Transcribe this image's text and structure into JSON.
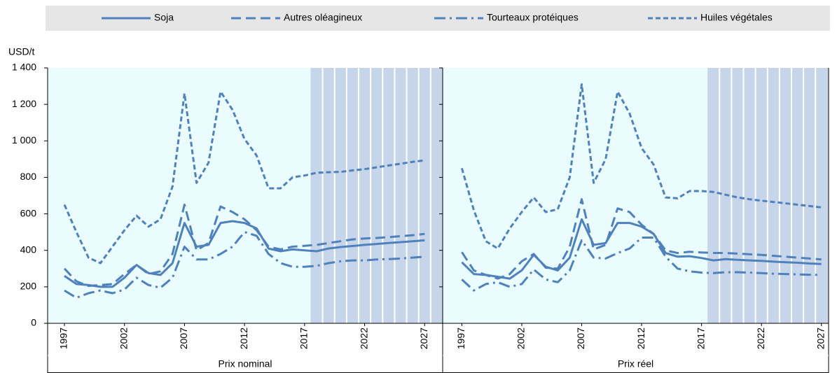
{
  "legend_corner": "top",
  "y_label": "USD/t",
  "chart_data": [
    {
      "type": "line",
      "title": "Prix nominal",
      "x": [
        1997,
        1998,
        1999,
        2000,
        2001,
        2002,
        2003,
        2004,
        2005,
        2006,
        2007,
        2008,
        2009,
        2010,
        2011,
        2012,
        2013,
        2014,
        2015,
        2016,
        2017,
        2018,
        2019,
        2020,
        2021,
        2022,
        2023,
        2024,
        2025,
        2026,
        2027
      ],
      "xlim": [
        1995.6,
        2028.5
      ],
      "xticks": [
        1997,
        2002,
        2007,
        2012,
        2017,
        2022,
        2027
      ],
      "ylim": [
        0,
        1400
      ],
      "yticks": [
        0,
        200,
        400,
        600,
        800,
        {
          "value": 1000,
          "label": "1 000"
        },
        {
          "value": 1200,
          "label": "1 200"
        },
        {
          "value": 1400,
          "label": "1 400"
        }
      ],
      "projection_start": 2018,
      "series": [
        {
          "name": "Soja",
          "color": "#4f81bd",
          "style": "solid",
          "values": [
            260,
            215,
            210,
            200,
            200,
            250,
            320,
            275,
            265,
            330,
            550,
            420,
            430,
            550,
            560,
            550,
            520,
            410,
            395,
            405,
            400,
            395,
            410,
            418,
            424,
            430,
            435,
            440,
            445,
            450,
            455
          ]
        },
        {
          "name": "Autres oléagineux",
          "color": "#4f81bd",
          "style": "dashed",
          "values": [
            300,
            230,
            205,
            210,
            215,
            270,
            320,
            270,
            285,
            380,
            650,
            400,
            440,
            640,
            610,
            570,
            510,
            420,
            405,
            420,
            425,
            430,
            440,
            450,
            460,
            465,
            468,
            472,
            478,
            483,
            490
          ]
        },
        {
          "name": "Tourteaux protéiques",
          "color": "#4f81bd",
          "style": "dashdot",
          "values": [
            180,
            140,
            165,
            180,
            165,
            185,
            250,
            210,
            195,
            250,
            420,
            350,
            350,
            380,
            420,
            500,
            480,
            380,
            330,
            310,
            310,
            315,
            330,
            340,
            345,
            345,
            350,
            352,
            355,
            360,
            365
          ]
        },
        {
          "name": "Huiles végétales",
          "color": "#4f81bd",
          "style": "shortdash",
          "values": [
            650,
            500,
            360,
            330,
            420,
            510,
            590,
            530,
            570,
            750,
            1260,
            770,
            880,
            1270,
            1170,
            1010,
            920,
            740,
            740,
            800,
            810,
            825,
            828,
            830,
            838,
            845,
            855,
            865,
            875,
            885,
            893
          ]
        }
      ]
    },
    {
      "type": "line",
      "title": "Prix réel",
      "x": [
        1997,
        1998,
        1999,
        2000,
        2001,
        2002,
        2003,
        2004,
        2005,
        2006,
        2007,
        2008,
        2009,
        2010,
        2011,
        2012,
        2013,
        2014,
        2015,
        2016,
        2017,
        2018,
        2019,
        2020,
        2021,
        2022,
        2023,
        2024,
        2025,
        2026,
        2027
      ],
      "xlim": [
        1995.4,
        2027.6
      ],
      "xticks": [
        1997,
        2002,
        2007,
        2012,
        2017,
        2022,
        2027
      ],
      "ylim": [
        0,
        1400
      ],
      "yticks": [
        0,
        200,
        400,
        600,
        800,
        {
          "value": 1000,
          "label": "1 000"
        },
        {
          "value": 1200,
          "label": "1 200"
        },
        {
          "value": 1400,
          "label": "1 400"
        }
      ],
      "projection_start": 2018,
      "series": [
        {
          "name": "Soja",
          "color": "#4f81bd",
          "style": "solid",
          "values": [
            335,
            270,
            265,
            255,
            245,
            290,
            375,
            310,
            290,
            360,
            570,
            430,
            440,
            550,
            550,
            530,
            490,
            385,
            365,
            368,
            358,
            345,
            352,
            348,
            345,
            342,
            338,
            335,
            332,
            328,
            325
          ]
        },
        {
          "name": "Autres oléagineux",
          "color": "#4f81bd",
          "style": "dashed",
          "values": [
            390,
            290,
            265,
            245,
            270,
            340,
            380,
            305,
            300,
            420,
            680,
            405,
            430,
            630,
            610,
            540,
            490,
            400,
            385,
            392,
            388,
            386,
            385,
            382,
            378,
            375,
            370,
            365,
            360,
            355,
            350
          ]
        },
        {
          "name": "Tourteaux protéiques",
          "color": "#4f81bd",
          "style": "dashdot",
          "values": [
            240,
            180,
            215,
            225,
            200,
            215,
            295,
            240,
            225,
            290,
            455,
            360,
            355,
            385,
            410,
            470,
            470,
            365,
            300,
            285,
            278,
            275,
            280,
            280,
            278,
            275,
            272,
            270,
            268,
            266,
            265
          ]
        },
        {
          "name": "Huiles végétales",
          "color": "#4f81bd",
          "style": "shortdash",
          "values": [
            850,
            620,
            450,
            410,
            520,
            610,
            690,
            610,
            625,
            800,
            1310,
            770,
            900,
            1270,
            1150,
            960,
            870,
            690,
            685,
            725,
            725,
            720,
            705,
            690,
            680,
            672,
            665,
            658,
            650,
            643,
            635
          ]
        }
      ]
    }
  ]
}
